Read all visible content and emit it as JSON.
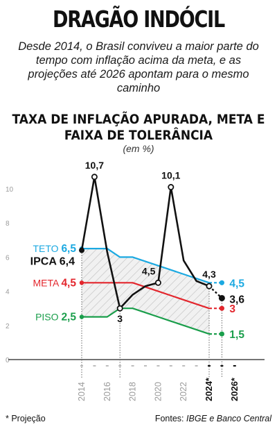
{
  "header": {
    "title": "DRAGÃO INDÓCIL",
    "subtitle": "Desde 2014, o Brasil conviveu a maior parte do tempo com inflação acima da meta, e as projeções até 2026 apontam para o mesmo caminho"
  },
  "chart_data": {
    "type": "line",
    "title": "TAXA DE INFLAÇÃO APURADA, META E FAIXA DE TOLERÂNCIA",
    "units": "(em %)",
    "ylim": [
      0,
      11
    ],
    "y_ticks": [
      "0",
      "2",
      "4",
      "6",
      "8",
      "10"
    ],
    "x_ticks": [
      "2014",
      "2016",
      "2018",
      "2020",
      "2022",
      "2024*",
      "2026*"
    ],
    "projection_start_year": 2024,
    "series": [
      {
        "name": "IPCA",
        "color": "#111111",
        "x": [
          2014,
          2015,
          2016,
          2017,
          2018,
          2019,
          2020,
          2021,
          2022,
          2023,
          2024,
          2025
        ],
        "values": [
          6.4,
          10.7,
          6.3,
          3.0,
          3.8,
          4.3,
          4.5,
          10.1,
          5.8,
          4.6,
          4.3,
          3.6
        ],
        "legend": "IPCA 6,4",
        "point_labels": [
          {
            "x": 2015,
            "y": 10.7,
            "text": "10,7"
          },
          {
            "x": 2017,
            "y": 3.0,
            "text": "3"
          },
          {
            "x": 2020,
            "y": 4.5,
            "text": "4,5"
          },
          {
            "x": 2021,
            "y": 10.1,
            "text": "10,1"
          },
          {
            "x": 2024,
            "y": 4.3,
            "text": "4,3"
          },
          {
            "x": 2025,
            "y": 3.6,
            "text": "3,6"
          }
        ]
      },
      {
        "name": "TETO",
        "color": "#1ba9e1",
        "x": [
          2014,
          2015,
          2016,
          2017,
          2018,
          2019,
          2020,
          2021,
          2022,
          2023,
          2024,
          2025
        ],
        "values": [
          6.5,
          6.5,
          6.5,
          6.0,
          6.0,
          5.75,
          5.5,
          5.25,
          5.0,
          4.75,
          4.5,
          4.5
        ],
        "legend": "TETO 6,5",
        "end_label": "4,5"
      },
      {
        "name": "META",
        "color": "#e3262d",
        "x": [
          2014,
          2015,
          2016,
          2017,
          2018,
          2019,
          2020,
          2021,
          2022,
          2023,
          2024,
          2025
        ],
        "values": [
          4.5,
          4.5,
          4.5,
          4.5,
          4.5,
          4.25,
          4.0,
          3.75,
          3.5,
          3.25,
          3.0,
          3.0
        ],
        "legend": "META 4,5",
        "end_label": "3"
      },
      {
        "name": "PISO",
        "color": "#1a9e4b",
        "x": [
          2014,
          2015,
          2016,
          2017,
          2018,
          2019,
          2020,
          2021,
          2022,
          2023,
          2024,
          2025
        ],
        "values": [
          2.5,
          2.5,
          2.5,
          3.0,
          3.0,
          2.75,
          2.5,
          2.25,
          2.0,
          1.75,
          1.5,
          1.5
        ],
        "legend": "PISO 2,5",
        "end_label": "1,5"
      }
    ]
  },
  "footer": {
    "footnote": "* Projeção",
    "source_prefix": "Fontes: ",
    "source_names": "IBGE e Banco Central"
  }
}
